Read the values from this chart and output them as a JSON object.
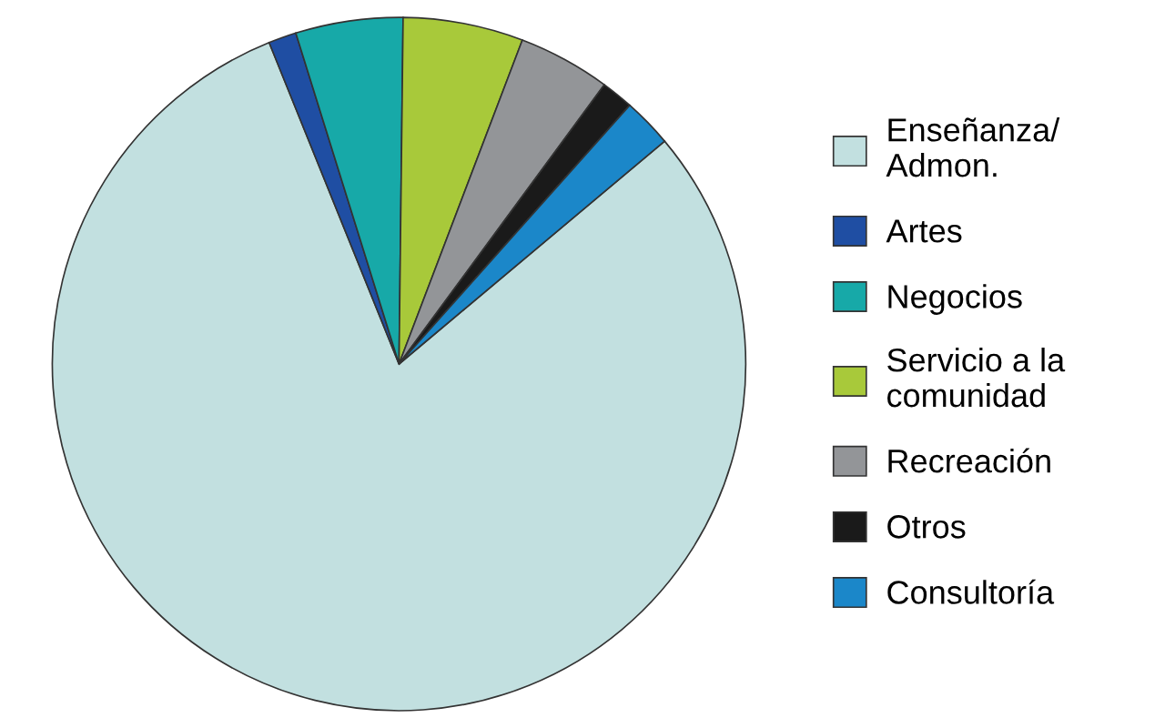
{
  "chart_data": {
    "type": "pie",
    "categories": [
      "Enseñanza/\nAdmon.",
      "Artes",
      "Negocios",
      "Servicio a la\ncomunidad",
      "Recreación",
      "Otros",
      "Consultoría"
    ],
    "values": [
      80,
      1.3,
      5,
      5.6,
      4.3,
      1.5,
      2.3
    ],
    "colors": [
      "#c2e0e0",
      "#1f4ea3",
      "#17a9a8",
      "#a8c93a",
      "#939598",
      "#1a1a1a",
      "#1b87c9"
    ],
    "legend": "right"
  }
}
